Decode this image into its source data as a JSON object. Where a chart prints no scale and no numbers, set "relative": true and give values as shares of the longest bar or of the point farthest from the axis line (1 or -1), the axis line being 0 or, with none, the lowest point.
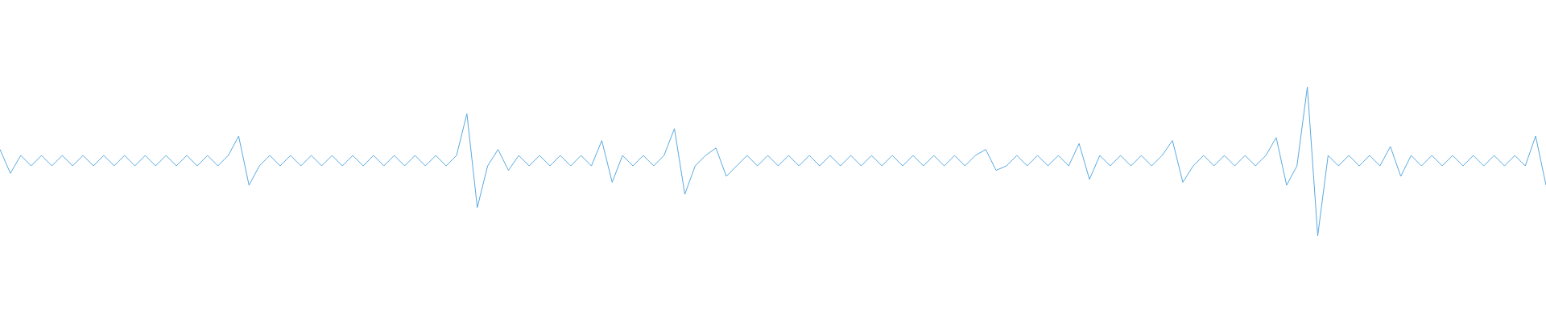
{
  "chart_data": {
    "type": "line",
    "relative": true,
    "color": "#5aaae0",
    "categories": [
      null,
      null,
      null,
      null,
      null,
      null,
      null,
      null,
      null,
      null,
      null,
      null,
      null,
      null,
      null,
      null,
      null,
      null,
      null,
      null,
      null,
      null,
      null,
      null,
      null,
      null,
      null,
      null,
      null,
      null,
      null,
      null,
      null,
      null,
      null,
      null,
      null,
      null,
      null,
      null,
      null,
      null,
      null,
      null,
      null,
      null,
      null,
      null,
      null,
      null,
      null,
      null,
      null,
      null,
      null,
      null,
      null,
      null,
      null,
      null,
      null,
      null,
      null,
      null,
      null,
      null,
      null,
      null,
      null,
      null,
      null,
      null,
      null,
      null,
      null,
      null,
      null,
      null,
      null,
      null,
      null,
      null,
      null,
      null,
      null,
      null,
      null,
      null,
      null,
      null,
      null,
      null,
      null,
      null,
      null,
      null,
      null,
      null,
      null,
      null,
      null,
      null,
      null,
      null,
      null,
      null,
      null,
      null,
      null,
      null,
      null,
      null,
      null,
      null,
      null,
      null,
      null,
      null,
      null,
      null,
      null,
      null,
      null,
      null,
      null,
      null,
      null,
      null,
      null,
      null,
      null,
      null,
      null,
      null,
      null,
      null,
      null,
      null,
      null,
      null,
      null,
      null,
      null,
      null,
      null,
      null,
      null,
      null,
      null,
      null
    ],
    "values": [
      0.58,
      0.42,
      0.54,
      0.47,
      0.54,
      0.47,
      0.54,
      0.47,
      0.54,
      0.47,
      0.54,
      0.47,
      0.54,
      0.47,
      0.54,
      0.47,
      0.54,
      0.47,
      0.54,
      0.47,
      0.54,
      0.47,
      0.54,
      0.67,
      0.34,
      0.47,
      0.54,
      0.47,
      0.54,
      0.47,
      0.54,
      0.47,
      0.54,
      0.47,
      0.54,
      0.47,
      0.54,
      0.47,
      0.54,
      0.47,
      0.54,
      0.47,
      0.54,
      0.47,
      0.54,
      0.82,
      0.19,
      0.47,
      0.58,
      0.44,
      0.54,
      0.47,
      0.54,
      0.47,
      0.54,
      0.47,
      0.54,
      0.47,
      0.64,
      0.36,
      0.54,
      0.47,
      0.54,
      0.47,
      0.54,
      0.72,
      0.28,
      0.47,
      0.54,
      0.59,
      0.4,
      0.47,
      0.54,
      0.47,
      0.54,
      0.47,
      0.54,
      0.47,
      0.54,
      0.47,
      0.54,
      0.47,
      0.54,
      0.47,
      0.54,
      0.47,
      0.54,
      0.47,
      0.54,
      0.47,
      0.54,
      0.47,
      0.54,
      0.47,
      0.54,
      0.58,
      0.44,
      0.47,
      0.54,
      0.47,
      0.54,
      0.47,
      0.54,
      0.47,
      0.62,
      0.38,
      0.54,
      0.47,
      0.54,
      0.47,
      0.54,
      0.47,
      0.54,
      0.64,
      0.36,
      0.47,
      0.54,
      0.47,
      0.54,
      0.47,
      0.54,
      0.47,
      0.54,
      0.66,
      0.34,
      0.47,
      1,
      0,
      0.54,
      0.47,
      0.54,
      0.47,
      0.54,
      0.47,
      0.6,
      0.4,
      0.54,
      0.47,
      0.54,
      0.47,
      0.54,
      0.47,
      0.54,
      0.47,
      0.54,
      0.47,
      0.54,
      0.47,
      0.67,
      0.34
    ]
  }
}
